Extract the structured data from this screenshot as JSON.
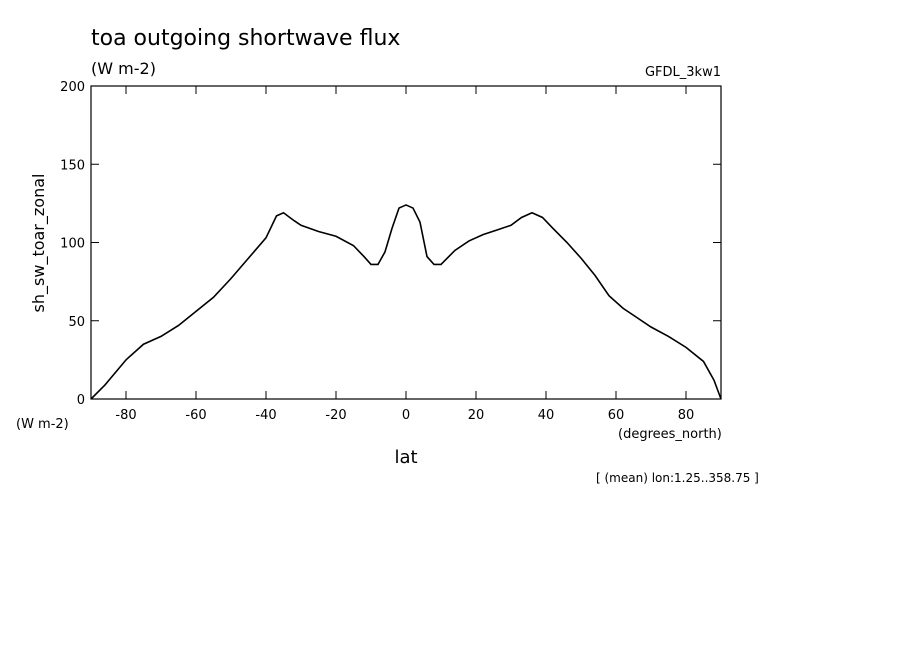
{
  "chart_data": {
    "type": "line",
    "title": "toa outgoing shortwave flux",
    "subtitle": "(W m-2)",
    "dataset": "GFDL_3kw1",
    "ylabel": "sh_sw_toar_zonal",
    "yunits": "(W m-2)",
    "xlabel": "lat",
    "xunits": "(degrees_north)",
    "annotation": "[ (mean) lon:1.25..358.75 ]",
    "color": "#000000",
    "x": [
      -90,
      -86,
      -80,
      -75,
      -70,
      -65,
      -60,
      -55,
      -50,
      -45,
      -40,
      -37,
      -35,
      -32,
      -30,
      -25,
      -20,
      -15,
      -12,
      -10,
      -8,
      -6,
      -4,
      -2,
      0,
      2,
      4,
      6,
      8,
      10,
      14,
      18,
      22,
      26,
      30,
      33,
      36,
      39,
      42,
      46,
      50,
      54,
      58,
      62,
      66,
      70,
      75,
      80,
      85,
      88,
      90
    ],
    "values": [
      0,
      9,
      25,
      35,
      40,
      47,
      56,
      65,
      77,
      90,
      103,
      117,
      119,
      114,
      111,
      107,
      104,
      98,
      91,
      86,
      86,
      94,
      109,
      122,
      124,
      122,
      113,
      91,
      86,
      86,
      95,
      101,
      105,
      108,
      111,
      116,
      119,
      116,
      109,
      100,
      90,
      79,
      66,
      58,
      52,
      46,
      40,
      33,
      24,
      12,
      0
    ],
    "xlim": [
      -90,
      90
    ],
    "xticks": [
      -80,
      -60,
      -40,
      -20,
      0,
      20,
      40,
      60,
      80
    ],
    "ylim": [
      0,
      200
    ],
    "yticks": [
      0,
      50,
      100,
      150,
      200
    ]
  }
}
